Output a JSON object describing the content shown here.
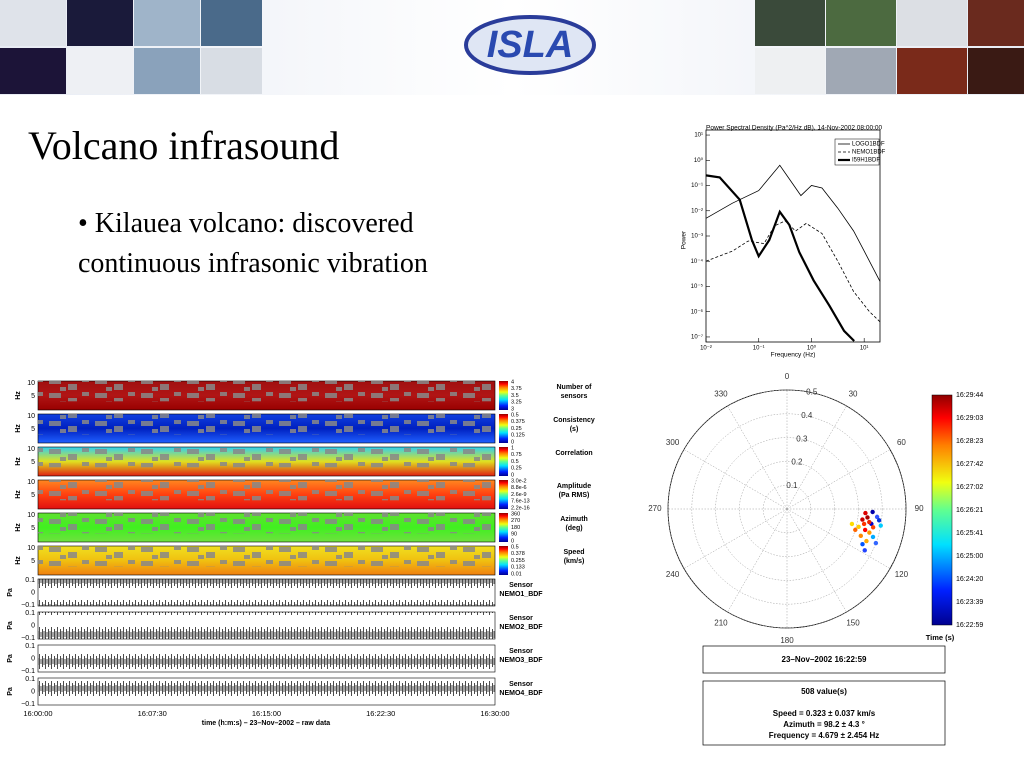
{
  "header": {
    "logo": "ISLA"
  },
  "title": "Volcano infrasound",
  "bullets": [
    "• Kilauea volcano: discovered continuous  infrasonic vibration"
  ],
  "psd": {
    "title": "Power Spectral Density (Pa^2/Hz dB), 14-Nov-2002 08:00:00",
    "ylabel": "Power",
    "xlabel": "Frequency (Hz)",
    "xlim": [
      -2,
      1.3
    ],
    "ylim": [
      -7.2,
      1.2
    ],
    "xticks": [
      {
        "value": -2,
        "label": "10⁻²"
      },
      {
        "value": -1,
        "label": "10⁻¹"
      },
      {
        "value": 0,
        "label": "10⁰"
      },
      {
        "value": 1,
        "label": "10¹"
      }
    ],
    "yticks": [
      {
        "value": 1,
        "label": "10¹"
      },
      {
        "value": 0,
        "label": "10⁰"
      },
      {
        "value": -1,
        "label": "10⁻¹"
      },
      {
        "value": -2,
        "label": "10⁻²"
      },
      {
        "value": -3,
        "label": "10⁻³"
      },
      {
        "value": -4,
        "label": "10⁻⁴"
      },
      {
        "value": -5,
        "label": "10⁻⁵"
      },
      {
        "value": -6,
        "label": "10⁻⁶"
      },
      {
        "value": -7,
        "label": "10⁻⁷"
      }
    ],
    "series": [
      {
        "name": "LOGO1BDF",
        "style": "thin",
        "x": [
          -2,
          -1.5,
          -1,
          -0.6,
          -0.4,
          -0.2,
          0,
          0.2,
          0.5,
          0.8,
          1.0,
          1.3
        ],
        "y": [
          -2.3,
          -1.7,
          -1.2,
          -0.2,
          -0.8,
          -1.4,
          -1.0,
          -1.1,
          -1.9,
          -2.8,
          -3.6,
          -4.8
        ]
      },
      {
        "name": "NEMO1BDF",
        "style": "dashed",
        "x": [
          -2,
          -1.5,
          -1.2,
          -0.9,
          -0.7,
          -0.5,
          -0.3,
          -0.1,
          0.2,
          0.5,
          0.8,
          1.1,
          1.3
        ],
        "y": [
          -4.0,
          -3.6,
          -3.2,
          -3.3,
          -2.6,
          -2.4,
          -2.8,
          -2.5,
          -2.9,
          -4.0,
          -5.2,
          -6.0,
          -6.4
        ]
      },
      {
        "name": "I59H1BDF",
        "style": "thick",
        "x": [
          -2,
          -1.74,
          -1.36,
          -1.13,
          -1.0,
          -0.8,
          -0.6,
          -0.42,
          -0.23,
          0.04,
          0.34,
          0.62,
          0.81
        ],
        "y": [
          -0.6,
          -0.68,
          -1.56,
          -3.16,
          -3.8,
          -3.16,
          -2.04,
          -2.56,
          -3.64,
          -4.76,
          -5.76,
          -6.76,
          -7.16
        ]
      }
    ]
  },
  "spectro": {
    "panels": [
      {
        "ylabel": "Hz",
        "yticks": [
          "10",
          "5"
        ],
        "cbar": [
          "4",
          "3.75",
          "3.5",
          "3.25",
          "3"
        ],
        "name": [
          "Number of",
          "sensors"
        ],
        "colors": [
          "#a01010",
          "#b01515",
          "#990000"
        ]
      },
      {
        "ylabel": "Hz",
        "yticks": [
          "10",
          "5"
        ],
        "cbar": [
          "0.5",
          "0.375",
          "0.25",
          "0.125",
          "0"
        ],
        "name": [
          "Consistency",
          "(s)"
        ],
        "colors": [
          "#1040e0",
          "#0020c0",
          "#2060ff"
        ]
      },
      {
        "ylabel": "Hz",
        "yticks": [
          "10",
          "5"
        ],
        "cbar": [
          "1",
          "0.75",
          "0.5",
          "0.25",
          "0"
        ],
        "name": [
          "Correlation"
        ],
        "colors": [
          "#30d0f0",
          "#e0e020",
          "#e02010"
        ]
      },
      {
        "ylabel": "Hz",
        "yticks": [
          "10",
          "5"
        ],
        "cbar": [
          "3.0e-2",
          "8.8e-6",
          "2.6e-9",
          "7.6e-13",
          "2.2e-16"
        ],
        "name": [
          "Amplitude",
          "(Pa RMS)"
        ],
        "colors": [
          "#ff8820",
          "#ff4010",
          "#e01010"
        ]
      },
      {
        "ylabel": "Hz",
        "yticks": [
          "10",
          "5"
        ],
        "cbar": [
          "360",
          "270",
          "180",
          "90",
          "0"
        ],
        "name": [
          "Azimuth",
          "(deg)"
        ],
        "colors": [
          "#60e030",
          "#40f020",
          "#70e040"
        ]
      },
      {
        "ylabel": "Hz",
        "yticks": [
          "10",
          "5"
        ],
        "cbar": [
          "0.5",
          "0.378",
          "0.255",
          "0.133",
          "0.01"
        ],
        "name": [
          "Speed",
          "(km/s)"
        ],
        "colors": [
          "#f0e020",
          "#f0c010",
          "#f08010"
        ]
      }
    ],
    "waves": [
      {
        "ylabel": "Pa",
        "yticks": [
          "0.1",
          "0",
          "−0.1"
        ],
        "sensor": [
          "Sensor",
          "NEMO1_BDF"
        ]
      },
      {
        "ylabel": "Pa",
        "yticks": [
          "0.1",
          "0",
          "−0.1"
        ],
        "sensor": [
          "Sensor",
          "NEMO2_BDF"
        ]
      },
      {
        "ylabel": "Pa",
        "yticks": [
          "0.1",
          "0",
          "−0.1"
        ],
        "sensor": [
          "Sensor",
          "NEMO3_BDF"
        ]
      },
      {
        "ylabel": "Pa",
        "yticks": [
          "0.1",
          "0",
          "−0.1"
        ],
        "sensor": [
          "Sensor",
          "NEMO4_BDF"
        ]
      }
    ],
    "xticks": [
      "16:00:00",
      "16:07:30",
      "16:15:00",
      "16:22:30",
      "16:30:00"
    ],
    "xlabel": "time (h:m:s) – 23–Nov–2002 – raw data"
  },
  "polar": {
    "azimuth_ticks": [
      0,
      30,
      60,
      90,
      120,
      150,
      180,
      210,
      240,
      270,
      300,
      330
    ],
    "radial_ticks": [
      0.1,
      0.2,
      0.3,
      0.4,
      0.5
    ],
    "rmax": 0.5,
    "points": [
      {
        "az": 100,
        "r": 0.36,
        "color": "#0000cc"
      },
      {
        "az": 95,
        "r": 0.38,
        "color": "#3355ff"
      },
      {
        "az": 105,
        "r": 0.34,
        "color": "#ff0000"
      },
      {
        "az": 110,
        "r": 0.33,
        "color": "#ff8800"
      },
      {
        "az": 98,
        "r": 0.32,
        "color": "#cc0000"
      },
      {
        "az": 102,
        "r": 0.37,
        "color": "#ff4400"
      },
      {
        "az": 108,
        "r": 0.38,
        "color": "#00aaff"
      },
      {
        "az": 112,
        "r": 0.36,
        "color": "#ffaa00"
      },
      {
        "az": 96,
        "r": 0.34,
        "color": "#aa0000"
      },
      {
        "az": 104,
        "r": 0.31,
        "color": "#ffcc00"
      },
      {
        "az": 115,
        "r": 0.35,
        "color": "#0055ff"
      },
      {
        "az": 92,
        "r": 0.36,
        "color": "#0000aa"
      },
      {
        "az": 100,
        "r": 0.4,
        "color": "#00ccff"
      },
      {
        "az": 107,
        "r": 0.3,
        "color": "#ff6600"
      },
      {
        "az": 93,
        "r": 0.33,
        "color": "#dd0000"
      },
      {
        "az": 118,
        "r": 0.37,
        "color": "#2244ff"
      },
      {
        "az": 103,
        "r": 0.28,
        "color": "#ffdd00"
      },
      {
        "az": 99,
        "r": 0.35,
        "color": "#ee2200"
      },
      {
        "az": 111,
        "r": 0.4,
        "color": "#3366ff"
      },
      {
        "az": 97,
        "r": 0.39,
        "color": "#0033dd"
      },
      {
        "az": 106,
        "r": 0.36,
        "color": "#ff9900"
      },
      {
        "az": 101,
        "r": 0.33,
        "color": "#ff3300"
      }
    ],
    "colorbar": [
      "16:29:44",
      "16:29:03",
      "16:28:23",
      "16:27:42",
      "16:27:02",
      "16:26:21",
      "16:25:41",
      "16:25:00",
      "16:24:20",
      "16:23:39",
      "16:22:59"
    ],
    "colorbar_title": "Time (s)",
    "time_box": "23–Nov–2002 16:22:59",
    "stats": [
      "508 value(s)",
      "Speed = 0.323 ± 0.037 km/s",
      "Azimuth = 98.2 ± 4.3 °",
      "Frequency = 4.679 ± 2.454 Hz"
    ]
  }
}
